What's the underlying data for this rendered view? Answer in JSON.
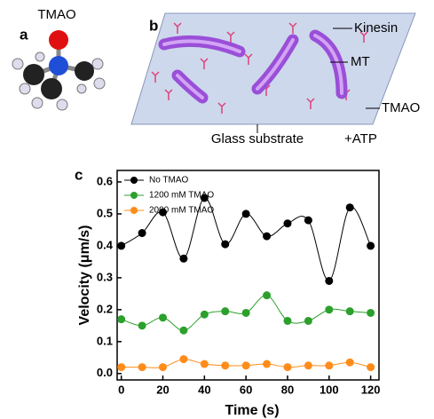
{
  "panel_a": {
    "label": "a",
    "title": "TMAO"
  },
  "panel_b": {
    "label": "b",
    "kinesin": "Kinesin",
    "mt": "MT",
    "tmao": "TMAO",
    "substrate": "Glass substrate",
    "atp": "+ATP"
  },
  "chart_data": {
    "type": "line",
    "panel_label": "c",
    "xlabel": "Time (s)",
    "ylabel": "Velocity (μm/s)",
    "x": [
      0,
      10,
      20,
      30,
      40,
      50,
      60,
      70,
      80,
      90,
      100,
      110,
      120
    ],
    "series": [
      {
        "name": "No TMAO",
        "color": "#000000",
        "values": [
          0.4,
          0.44,
          0.505,
          0.36,
          0.55,
          0.405,
          0.5,
          0.43,
          0.47,
          0.48,
          0.29,
          0.52,
          0.4
        ]
      },
      {
        "name": "1200 mM TMAO",
        "color": "#2ca02c",
        "values": [
          0.17,
          0.15,
          0.175,
          0.135,
          0.185,
          0.195,
          0.19,
          0.245,
          0.165,
          0.165,
          0.2,
          0.195,
          0.19
        ]
      },
      {
        "name": "2000 mM TMAO",
        "color": "#ff8c1a",
        "values": [
          0.02,
          0.02,
          0.02,
          0.045,
          0.03,
          0.025,
          0.025,
          0.03,
          0.02,
          0.025,
          0.025,
          0.035,
          0.02
        ]
      }
    ],
    "xlim": [
      -2,
      124
    ],
    "xticks": [
      0,
      20,
      40,
      60,
      80,
      100,
      120
    ],
    "ylim": [
      -0.02,
      0.636
    ],
    "yticks": [
      {
        "value": 0,
        "label": "0.0"
      },
      0.1,
      0.2,
      0.3,
      0.4,
      0.5,
      0.6
    ],
    "legend": "top-left"
  }
}
